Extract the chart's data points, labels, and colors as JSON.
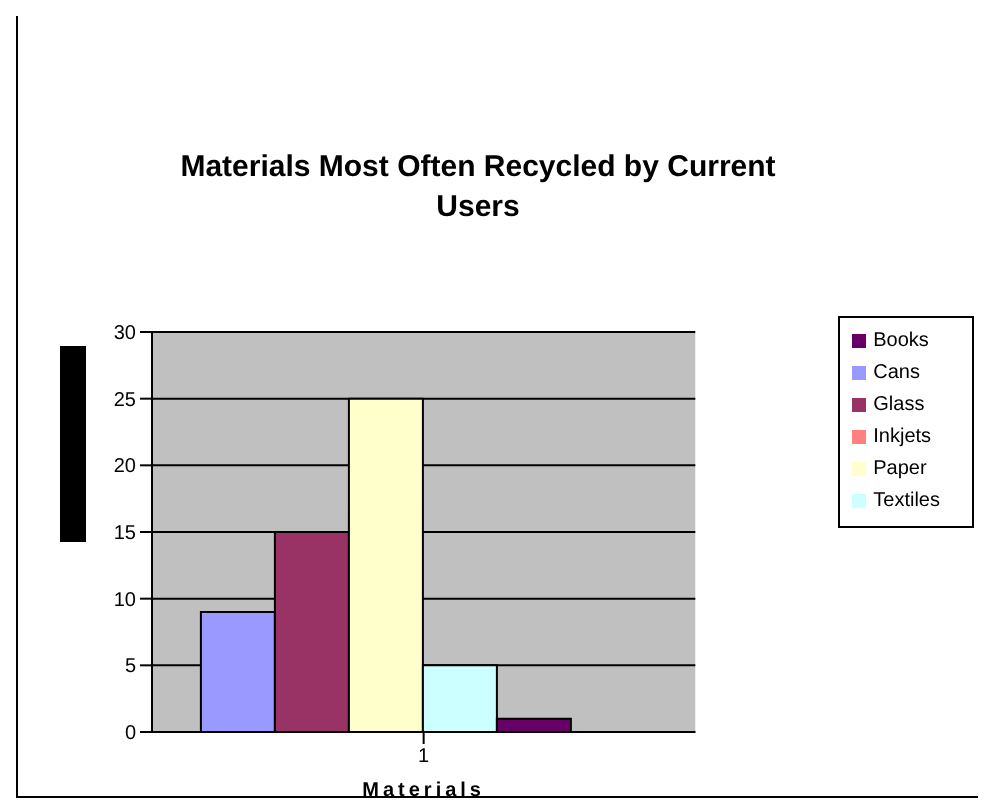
{
  "chart_data": {
    "type": "bar",
    "title": "Materials Most Often Recycled by Current Users",
    "xlabel": "Materials",
    "categories": [
      "1"
    ],
    "series": [
      {
        "name": "Cans",
        "color": "#9999ff",
        "values": [
          9
        ]
      },
      {
        "name": "Glass",
        "color": "#993366",
        "values": [
          15
        ]
      },
      {
        "name": "Paper",
        "color": "#ffffcc",
        "values": [
          25
        ]
      },
      {
        "name": "Textiles",
        "color": "#ccffff",
        "values": [
          5
        ]
      },
      {
        "name": "Books",
        "color": "#660066",
        "values": [
          1
        ]
      },
      {
        "name": "Inkjets",
        "color": "#ff8080",
        "values": [
          0
        ]
      }
    ],
    "ylim": [
      0,
      30
    ],
    "yticks": [
      0,
      5,
      10,
      15,
      20,
      25,
      30
    ],
    "grid": "y",
    "legend": "right"
  }
}
